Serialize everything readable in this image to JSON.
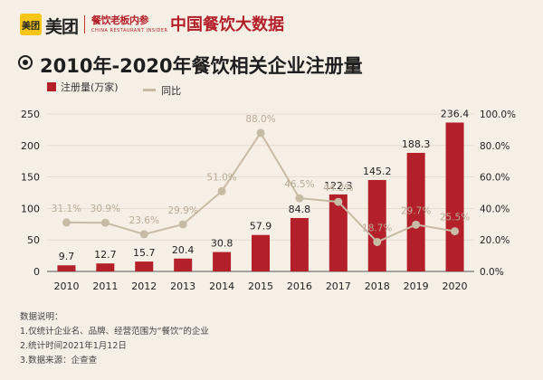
{
  "header": {
    "logo_mark": "美团",
    "logo_text": "美团",
    "sub_brand": "餐饮老板内参",
    "sub_brand_en": "CHINA RESTAURANT INSIDER",
    "brand_title": "中国餐饮大数据"
  },
  "colors": {
    "background": "#f6efe6",
    "bar": "#b3202a",
    "line": "#c8bba6",
    "grid": "#e2d8cb"
  },
  "legend": {
    "bar_label": "注册量(万家)",
    "line_label": "同比"
  },
  "notes": {
    "title": "数据说明：",
    "lines": [
      "1.仅统计企业名、品牌、经营范围为“餐饮”的企业",
      "2.统计时间2021年1月12日",
      "3.数据来源：企查查"
    ]
  },
  "chart_data": {
    "type": "bar",
    "title": "2010年-2020年餐饮相关企业注册量",
    "categories": [
      "2010",
      "2011",
      "2012",
      "2013",
      "2014",
      "2015",
      "2016",
      "2017",
      "2018",
      "2019",
      "2020"
    ],
    "series": [
      {
        "name": "注册量(万家)",
        "type": "bar",
        "axis": "left",
        "values": [
          9.7,
          12.7,
          15.7,
          20.4,
          30.8,
          57.9,
          84.8,
          122.3,
          145.2,
          188.3,
          236.4
        ],
        "labels": [
          "9.7",
          "12.7",
          "15.7",
          "20.4",
          "30.8",
          "57.9",
          "84.8",
          "122.3",
          "145.2",
          "188.3",
          "236.4"
        ]
      },
      {
        "name": "同比",
        "type": "line",
        "axis": "right",
        "values": [
          31.1,
          30.9,
          23.6,
          29.9,
          51.0,
          88.0,
          46.5,
          44.2,
          18.7,
          29.7,
          25.5
        ],
        "labels": [
          "31.1%",
          "30.9%",
          "23.6%",
          "29.9%",
          "51.0%",
          "88.0%",
          "46.5%",
          "44.2%",
          "18.7%",
          "29.7%",
          "25.5%"
        ]
      }
    ],
    "y_left": {
      "min": 0,
      "max": 250,
      "ticks": [
        "0",
        "50",
        "100",
        "150",
        "200",
        "250"
      ]
    },
    "y_right": {
      "min": 0,
      "max": 100,
      "ticks": [
        "0.0%",
        "20.0%",
        "40.0%",
        "60.0%",
        "80.0%",
        "100.0%"
      ]
    },
    "grid": true,
    "legend_position": "top-left"
  }
}
